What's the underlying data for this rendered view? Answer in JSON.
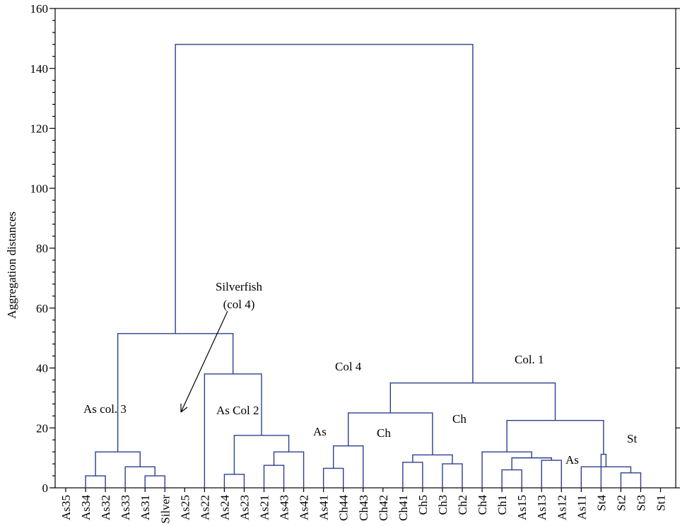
{
  "chart_data": {
    "type": "dendrogram",
    "ylabel": "Aggregation distances",
    "ylim": [
      0,
      160
    ],
    "yticks": [
      0,
      20,
      40,
      60,
      80,
      100,
      120,
      140,
      160
    ],
    "colors": {
      "links": "#2b3f8f",
      "axis": "#000000"
    },
    "leaves": [
      "As35",
      "As34",
      "As32",
      "As33",
      "As31",
      "Silver",
      "As25",
      "As22",
      "As24",
      "As23",
      "As21",
      "As43",
      "As42",
      "As41",
      "Ch44",
      "Ch43",
      "Ch42",
      "Ch41",
      "Ch5",
      "Ch3",
      "Ch2",
      "Ch4",
      "Ch1",
      "As15",
      "As13",
      "As12",
      "As11",
      "St4",
      "St2",
      "St3",
      "St1"
    ],
    "merges": [
      {
        "a": "As34",
        "b": "As32",
        "h": 4
      },
      {
        "a": "As31",
        "b": "Silver",
        "h": 4
      },
      {
        "a": "As33",
        "b": 1,
        "h": 7
      },
      {
        "a": 0,
        "b": 2,
        "h": 12
      },
      {
        "a": "As24",
        "b": "As23",
        "h": 4.5
      },
      {
        "a": "As21",
        "b": "As43",
        "h": 7.5
      },
      {
        "a": "As42",
        "b": 5,
        "h": 12
      },
      {
        "a": 4,
        "b": 6,
        "h": 17.5
      },
      {
        "a": "As22",
        "b": 7,
        "h": 38
      },
      {
        "a": 3,
        "b": 8,
        "h": 51.5
      },
      {
        "a": "As41",
        "b": "Ch44",
        "h": 6.5
      },
      {
        "a": "Ch43",
        "b": 10,
        "h": 14
      },
      {
        "a": "Ch41",
        "b": "Ch5",
        "h": 8.5
      },
      {
        "a": "Ch3",
        "b": "Ch2",
        "h": 8
      },
      {
        "a": 12,
        "b": 13,
        "h": 11
      },
      {
        "a": 11,
        "b": 14,
        "h": 25
      },
      {
        "a": "Ch1",
        "b": "As15",
        "h": 6
      },
      {
        "a": "As13",
        "b": "As12",
        "h": 9.2
      },
      {
        "a": 16,
        "b": 17,
        "h": 10
      },
      {
        "a": "Ch4",
        "b": 18,
        "h": 12
      },
      {
        "a": "St2",
        "b": "St3",
        "h": 5
      },
      {
        "a": "As11",
        "b": 20,
        "h": 7
      },
      {
        "a": "St4",
        "b": 21,
        "h": 11.2
      },
      {
        "a": "St1",
        "b": "__none__",
        "h": 0
      },
      {
        "a": 19,
        "b": 22,
        "h": 22.5
      },
      {
        "a": 15,
        "b": 24,
        "h": 35
      },
      {
        "a": 9,
        "b": 25,
        "h": 148
      }
    ],
    "annotations": [
      {
        "text": "As col. 3"
      },
      {
        "text": "Silverfish"
      },
      {
        "text": "(col 4)"
      },
      {
        "text": "As Col 2"
      },
      {
        "text": "Col 4"
      },
      {
        "text": "As"
      },
      {
        "text": "Ch"
      },
      {
        "text": "Col. 1"
      },
      {
        "text": "Ch"
      },
      {
        "text": "As"
      },
      {
        "text": "St"
      }
    ]
  }
}
